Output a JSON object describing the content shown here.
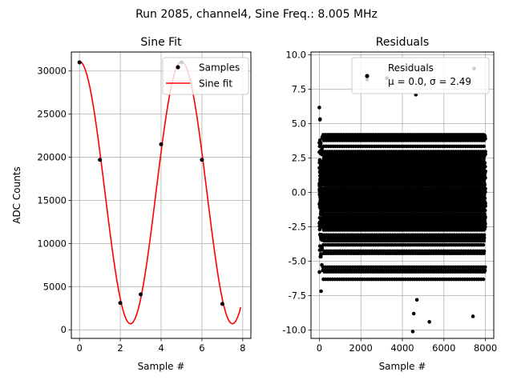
{
  "figure": {
    "suptitle": "Run 2085, channel4, Sine Freq.: 8.005 MHz"
  },
  "chart_data": [
    {
      "type": "line",
      "title": "Sine Fit",
      "xlabel": "Sample #",
      "ylabel": "ADC Counts",
      "xlim": [
        -0.4,
        8.4
      ],
      "ylim": [
        -1000,
        32200
      ],
      "xticks": [
        0,
        2,
        4,
        6,
        8
      ],
      "yticks": [
        0,
        5000,
        10000,
        15000,
        20000,
        25000,
        30000
      ],
      "grid": true,
      "legend": {
        "position": "top-right",
        "entries": [
          "Samples",
          "Sine fit"
        ]
      },
      "series": [
        {
          "name": "Samples",
          "kind": "scatter",
          "color": "#000000",
          "x": [
            0,
            1,
            2,
            3,
            4,
            5,
            6,
            7
          ],
          "y": [
            31000,
            19700,
            3100,
            4100,
            21500,
            31000,
            19700,
            3000
          ]
        },
        {
          "name": "Sine fit",
          "kind": "line",
          "color": "#ff0000",
          "model": {
            "offset": 15900,
            "amplitude": 15200,
            "period_samples": 4.998,
            "phase_at_zero": 0,
            "x_range": [
              0,
              7.9
            ]
          }
        }
      ]
    },
    {
      "type": "scatter",
      "title": "Residuals",
      "xlabel": "Sample #",
      "ylabel": "",
      "xlim": [
        -400,
        8400
      ],
      "ylim": [
        -10.6,
        10.2
      ],
      "xticks": [
        0,
        2000,
        4000,
        6000,
        8000
      ],
      "yticks": [
        -10.0,
        -7.5,
        -5.0,
        -2.5,
        0.0,
        2.5,
        5.0,
        7.5,
        10.0
      ],
      "grid": true,
      "legend": {
        "position": "top-right",
        "entries": [
          "Residuals",
          "μ = 0.0, σ = 2.49"
        ]
      },
      "series": [
        {
          "name": "Residuals",
          "color": "#000000",
          "n_points": 8000,
          "x_range": [
            0,
            8000
          ],
          "mean": 0.0,
          "std": 2.49,
          "outliers": [
            {
              "x": 4500,
              "y": -10.1
            },
            {
              "x": 5300,
              "y": -9.4
            },
            {
              "x": 4550,
              "y": -8.8
            },
            {
              "x": 7400,
              "y": -9.0
            },
            {
              "x": 4700,
              "y": -7.8
            },
            {
              "x": 7450,
              "y": 9.0
            },
            {
              "x": 2300,
              "y": 8.2
            },
            {
              "x": 3250,
              "y": 8.3
            },
            {
              "x": 4650,
              "y": 7.1
            }
          ]
        }
      ]
    }
  ]
}
